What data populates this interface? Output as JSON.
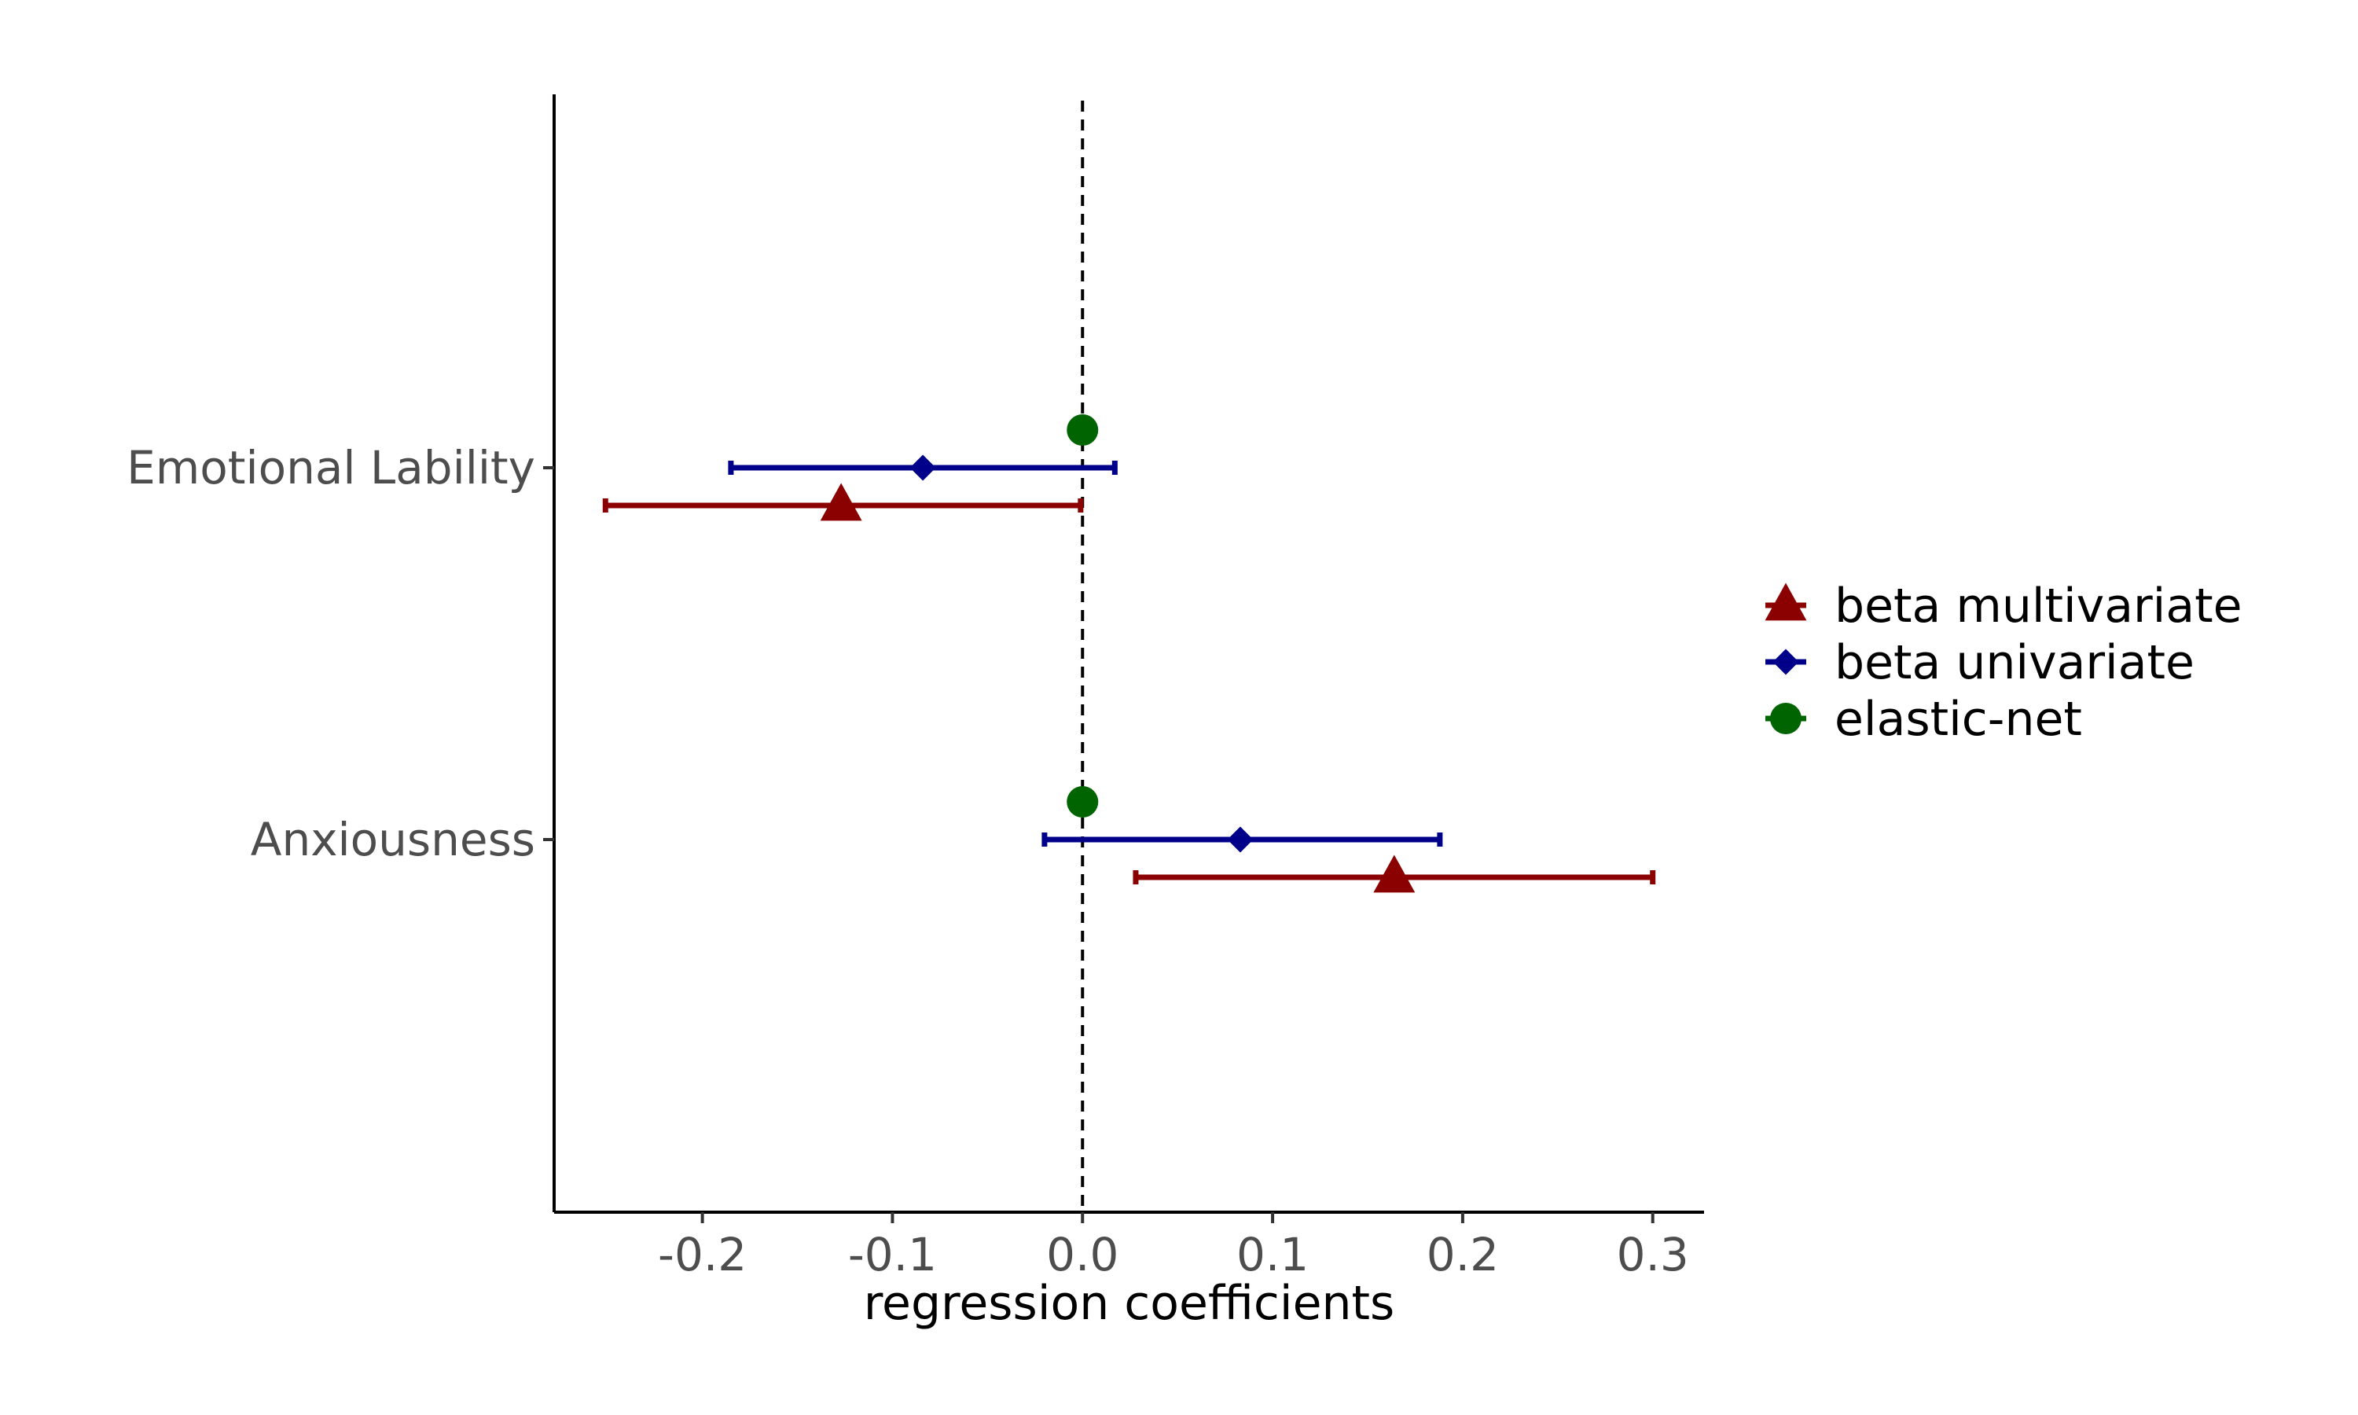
{
  "chart_data": {
    "type": "scatter",
    "subtype": "coefficient-plot",
    "title": "",
    "xlabel": "regression coefficients",
    "ylabel": "",
    "xlim": [
      -0.278,
      0.327
    ],
    "xticks": [
      -0.2,
      -0.1,
      0.0,
      0.1,
      0.2,
      0.3
    ],
    "xtick_labels": [
      "-0.2",
      "-0.1",
      "0.0",
      "0.1",
      "0.2",
      "0.3"
    ],
    "categories": [
      "Emotional Lability",
      "Anxiousness"
    ],
    "reference_line": {
      "x": 0,
      "style": "dashed",
      "color": "#000000"
    },
    "grid": false,
    "legend_position": "right",
    "series": [
      {
        "name": "beta multivariate",
        "color": "#8b0000",
        "marker": "triangle",
        "values": [
          -0.127,
          0.164
        ],
        "ci_low": [
          -0.251,
          0.028
        ],
        "ci_high": [
          -0.001,
          0.3
        ]
      },
      {
        "name": "beta univariate",
        "color": "#00008b",
        "marker": "diamond",
        "values": [
          -0.084,
          0.083
        ],
        "ci_low": [
          -0.185,
          -0.02
        ],
        "ci_high": [
          0.017,
          0.188
        ]
      },
      {
        "name": "elastic-net",
        "color": "#006400",
        "marker": "circle",
        "values": [
          0.0,
          0.0
        ],
        "ci_low": [
          null,
          null
        ],
        "ci_high": [
          null,
          null
        ]
      }
    ]
  }
}
